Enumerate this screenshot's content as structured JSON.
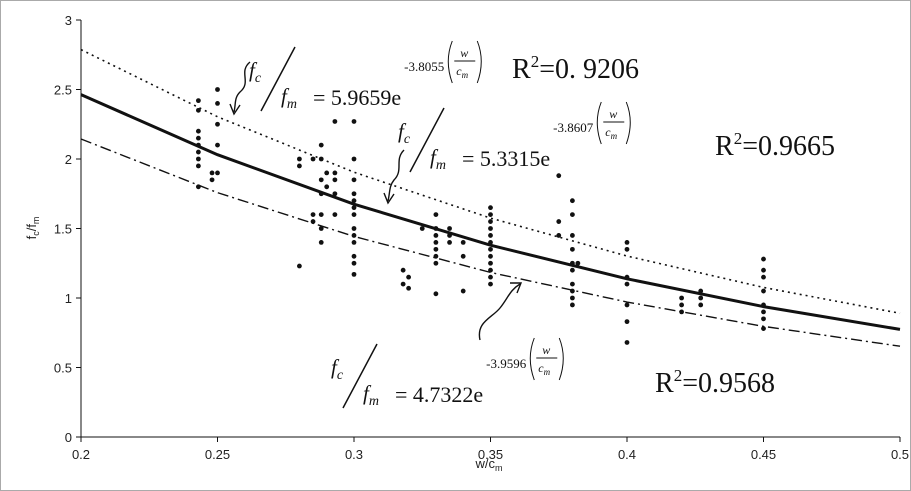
{
  "chart_data": {
    "type": "scatter",
    "xlim": [
      0.2,
      0.5
    ],
    "ylim": [
      0,
      3
    ],
    "xticks": [
      0.2,
      0.25,
      0.3,
      0.35,
      0.4,
      0.45,
      0.5
    ],
    "yticks": [
      0,
      0.5,
      1,
      1.5,
      2,
      2.5,
      3
    ],
    "grid": false,
    "x_label": {
      "text": "w/c",
      "sub": "m"
    },
    "y_label": {
      "text": "f",
      "sub": "c",
      "text2": "/f",
      "sub2": "m"
    },
    "series": [
      {
        "type": "scatter",
        "color": "#111111",
        "x": [
          0.243,
          0.243,
          0.243,
          0.243,
          0.243,
          0.243,
          0.243,
          0.243,
          0.243,
          0.248,
          0.248,
          0.25,
          0.25,
          0.25,
          0.25,
          0.25,
          0.28,
          0.28,
          0.28,
          0.285,
          0.285,
          0.285,
          0.288,
          0.288,
          0.288,
          0.288,
          0.288,
          0.288,
          0.288,
          0.29,
          0.29,
          0.293,
          0.293,
          0.293,
          0.293,
          0.293,
          0.3,
          0.3,
          0.3,
          0.3,
          0.3,
          0.3,
          0.3,
          0.3,
          0.3,
          0.3,
          0.3,
          0.3,
          0.3,
          0.318,
          0.318,
          0.32,
          0.32,
          0.325,
          0.33,
          0.33,
          0.33,
          0.33,
          0.33,
          0.33,
          0.33,
          0.33,
          0.335,
          0.335,
          0.335,
          0.34,
          0.34,
          0.34,
          0.35,
          0.35,
          0.35,
          0.35,
          0.35,
          0.35,
          0.35,
          0.35,
          0.35,
          0.35,
          0.35,
          0.35,
          0.375,
          0.375,
          0.375,
          0.38,
          0.38,
          0.38,
          0.38,
          0.38,
          0.38,
          0.38,
          0.38,
          0.38,
          0.38,
          0.382,
          0.4,
          0.4,
          0.4,
          0.4,
          0.4,
          0.4,
          0.4,
          0.42,
          0.42,
          0.42,
          0.427,
          0.427,
          0.427,
          0.45,
          0.45,
          0.45,
          0.45,
          0.45,
          0.45,
          0.45,
          0.45
        ],
        "values": [
          2.42,
          2.35,
          2.2,
          2.15,
          2.1,
          2.05,
          2.0,
          1.95,
          1.8,
          1.85,
          1.9,
          2.5,
          2.4,
          2.25,
          2.1,
          1.9,
          1.23,
          2.0,
          1.95,
          2.0,
          1.6,
          1.55,
          2.1,
          2.0,
          1.85,
          1.75,
          1.6,
          1.5,
          1.4,
          1.9,
          1.8,
          2.27,
          1.9,
          1.85,
          1.75,
          1.6,
          2.27,
          2.0,
          1.85,
          1.75,
          1.7,
          1.65,
          1.6,
          1.5,
          1.45,
          1.4,
          1.3,
          1.25,
          1.17,
          1.2,
          1.1,
          1.15,
          1.07,
          1.5,
          1.6,
          1.5,
          1.45,
          1.4,
          1.35,
          1.3,
          1.25,
          1.03,
          1.5,
          1.45,
          1.4,
          1.4,
          1.3,
          1.05,
          1.65,
          1.6,
          1.55,
          1.5,
          1.45,
          1.4,
          1.35,
          1.3,
          1.25,
          1.2,
          1.15,
          1.1,
          1.88,
          1.55,
          1.45,
          1.7,
          1.6,
          1.45,
          1.35,
          1.25,
          1.2,
          1.1,
          1.05,
          1.0,
          0.95,
          1.25,
          1.4,
          1.35,
          1.15,
          1.1,
          0.95,
          0.83,
          0.68,
          1.0,
          0.95,
          0.9,
          1.05,
          1.0,
          0.95,
          1.28,
          1.2,
          1.15,
          1.05,
          0.95,
          0.9,
          0.85,
          0.78
        ]
      },
      {
        "type": "line",
        "style": "dotted",
        "color": "#111111",
        "x": [
          0.2,
          0.25,
          0.3,
          0.35,
          0.4,
          0.45,
          0.5
        ],
        "values": [
          2.787,
          2.304,
          1.905,
          1.575,
          1.302,
          1.076,
          0.89
        ]
      },
      {
        "type": "line",
        "style": "solid",
        "color": "#111111",
        "x": [
          0.2,
          0.25,
          0.3,
          0.35,
          0.4,
          0.45,
          0.5
        ],
        "values": [
          2.463,
          2.031,
          1.675,
          1.38,
          1.138,
          0.938,
          0.774
        ]
      },
      {
        "type": "line",
        "style": "dashdot",
        "color": "#111111",
        "x": [
          0.2,
          0.25,
          0.3,
          0.35,
          0.4,
          0.45,
          0.5
        ],
        "values": [
          2.144,
          1.758,
          1.443,
          1.184,
          0.971,
          0.796,
          0.653
        ]
      }
    ],
    "equations": [
      {
        "fc": "f",
        "fc_sub": "c",
        "fm": "f",
        "fm_sub": "m",
        "rhs": "= 5.9659e",
        "exponent": "-3.8055",
        "w": "w",
        "cm": "c",
        "cm_sub": "m"
      },
      {
        "fc": "f",
        "fc_sub": "c",
        "fm": "f",
        "fm_sub": "m",
        "rhs": "= 5.3315e",
        "exponent": "-3.8607",
        "w": "w",
        "cm": "c",
        "cm_sub": "m"
      },
      {
        "fc": "f",
        "fc_sub": "c",
        "fm": "f",
        "fm_sub": "m",
        "rhs": "= 4.7322e",
        "exponent": "-3.9596",
        "w": "w",
        "cm": "c",
        "cm_sub": "m"
      }
    ],
    "r_squared": [
      {
        "r": "R",
        "sup": "2",
        "text": "=0. 9206"
      },
      {
        "r": "R",
        "sup": "2",
        "text": "=0.9665"
      },
      {
        "r": "R",
        "sup": "2",
        "text": "=0.9568"
      }
    ]
  }
}
